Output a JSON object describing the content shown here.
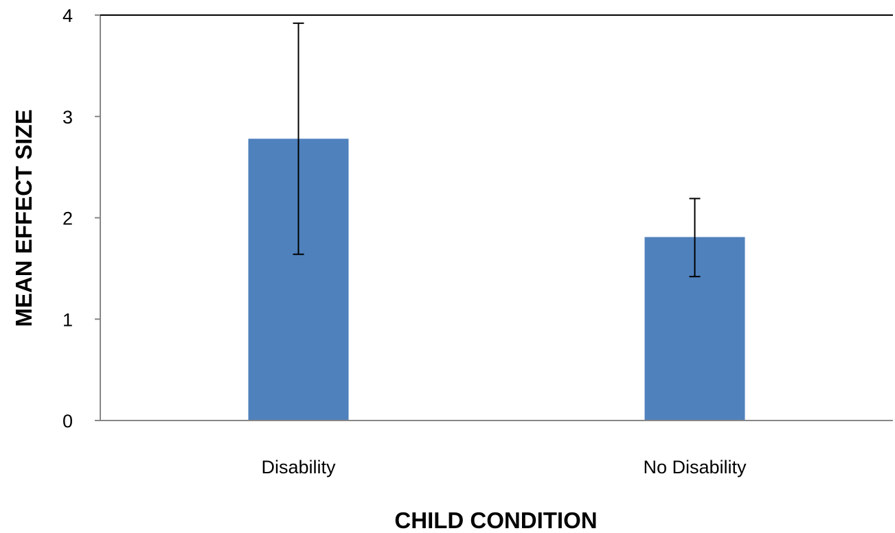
{
  "chart_data": {
    "type": "bar",
    "title": "",
    "xlabel": "CHILD CONDITION",
    "ylabel": "MEAN EFFECT SIZE",
    "categories": [
      "Disability",
      "No Disability"
    ],
    "values": [
      2.78,
      1.81
    ],
    "error_bars": [
      {
        "low": 1.64,
        "high": 3.92
      },
      {
        "low": 1.42,
        "high": 2.19
      }
    ],
    "ylim": [
      0,
      4
    ],
    "yticks": [
      "0",
      "1",
      "2",
      "3",
      "4"
    ],
    "grid": false,
    "legend": "none",
    "bar_color": "#4F81BD",
    "axis_color": "#868686"
  }
}
